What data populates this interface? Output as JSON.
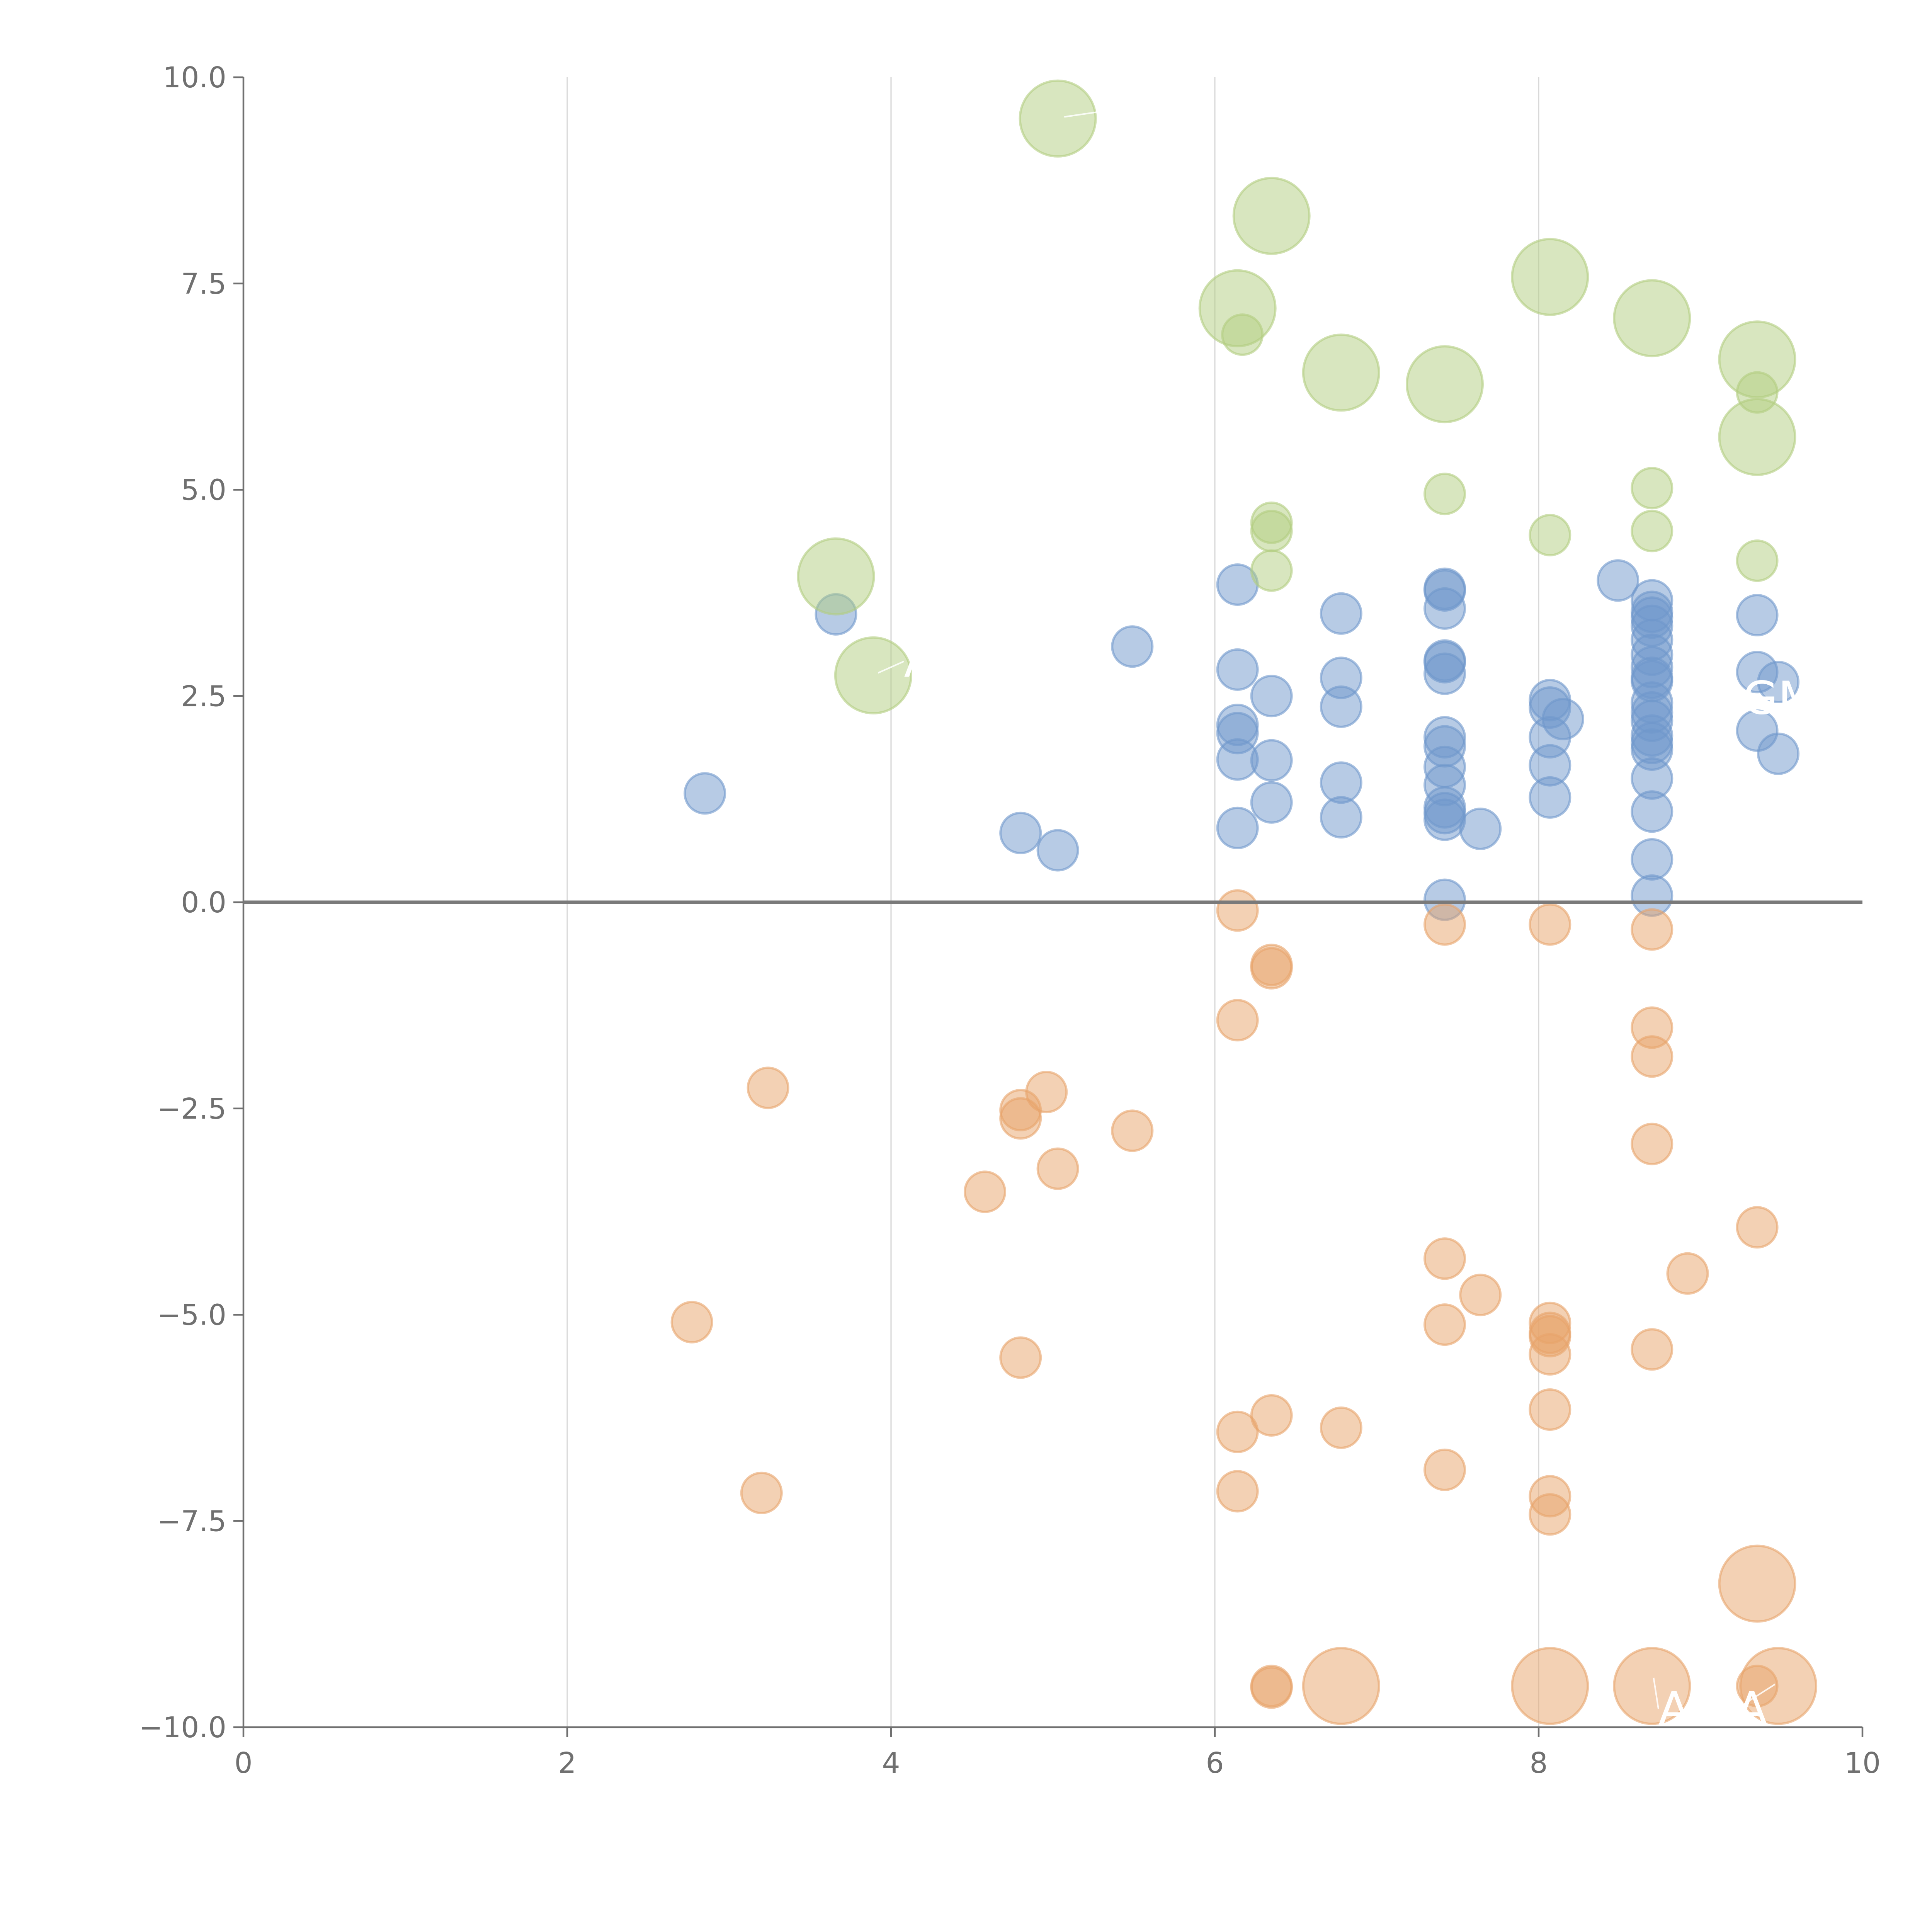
{
  "chart_data": {
    "type": "scatter",
    "title": "",
    "xlabel": "",
    "ylabel": "",
    "xlim": [
      0,
      10
    ],
    "ylim": [
      -10,
      10
    ],
    "x_ticks": [
      0,
      2,
      4,
      6,
      8,
      10
    ],
    "y_ticks": [
      -10,
      -7.5,
      -5,
      -2.5,
      0,
      2.5,
      5,
      7.5,
      10
    ],
    "x_tick_labels": [
      "0",
      "2",
      "4",
      "6",
      "8",
      "10"
    ],
    "y_tick_labels": [
      "−10.0",
      "−7.5",
      "−5.0",
      "−2.5",
      "0.0",
      "2.5",
      "5.0",
      "7.5",
      "10.0"
    ],
    "vertical_grid_at": [
      2,
      4,
      6,
      8
    ],
    "reference_line_y": 0,
    "series": [
      {
        "name": "blue",
        "color": "#7098cc",
        "points": [
          [
            2.85,
            1.32,
            1
          ],
          [
            3.66,
            3.49,
            1
          ],
          [
            4.8,
            0.84,
            1
          ],
          [
            5.03,
            0.63,
            1
          ],
          [
            5.49,
            3.1,
            1
          ],
          [
            6.14,
            3.85,
            1
          ],
          [
            6.14,
            2.82,
            1
          ],
          [
            6.14,
            2.15,
            1
          ],
          [
            6.14,
            2.05,
            1
          ],
          [
            6.14,
            1.73,
            1
          ],
          [
            6.14,
            0.9,
            1
          ],
          [
            6.35,
            2.5,
            1
          ],
          [
            6.35,
            1.72,
            1
          ],
          [
            6.35,
            1.21,
            1
          ],
          [
            6.78,
            3.5,
            1
          ],
          [
            6.78,
            2.72,
            1
          ],
          [
            6.78,
            2.37,
            1
          ],
          [
            6.78,
            1.45,
            1
          ],
          [
            6.78,
            1.03,
            1
          ],
          [
            7.42,
            3.8,
            1
          ],
          [
            7.42,
            3.78,
            1
          ],
          [
            7.42,
            3.56,
            1
          ],
          [
            7.42,
            2.93,
            1
          ],
          [
            7.42,
            2.91,
            1
          ],
          [
            7.42,
            2.77,
            1
          ],
          [
            7.42,
            2.0,
            1
          ],
          [
            7.42,
            1.89,
            1
          ],
          [
            7.42,
            1.64,
            1
          ],
          [
            7.42,
            1.42,
            1
          ],
          [
            7.42,
            1.15,
            1
          ],
          [
            7.42,
            1.08,
            1
          ],
          [
            7.42,
            1.0,
            1
          ],
          [
            7.42,
            0.03,
            1
          ],
          [
            7.64,
            0.89,
            1
          ],
          [
            8.07,
            2.45,
            1
          ],
          [
            8.07,
            2.36,
            1
          ],
          [
            8.07,
            2.0,
            1
          ],
          [
            8.07,
            1.66,
            1
          ],
          [
            8.07,
            1.27,
            1
          ],
          [
            8.15,
            2.22,
            1
          ],
          [
            8.49,
            3.9,
            1
          ],
          [
            8.7,
            3.66,
            1
          ],
          [
            8.7,
            3.52,
            1
          ],
          [
            8.7,
            3.45,
            1
          ],
          [
            8.7,
            3.35,
            1
          ],
          [
            8.7,
            3.18,
            1
          ],
          [
            8.7,
            3.0,
            1
          ],
          [
            8.7,
            2.85,
            1
          ],
          [
            8.7,
            2.72,
            1
          ],
          [
            8.7,
            2.68,
            1
          ],
          [
            8.7,
            2.42,
            1
          ],
          [
            8.7,
            2.3,
            1
          ],
          [
            8.7,
            2.2,
            1
          ],
          [
            8.7,
            2.02,
            1
          ],
          [
            8.7,
            1.93,
            1
          ],
          [
            8.7,
            1.85,
            1
          ],
          [
            8.7,
            1.5,
            1
          ],
          [
            8.7,
            1.1,
            1
          ],
          [
            8.7,
            0.52,
            1
          ],
          [
            8.7,
            0.08,
            1
          ],
          [
            9.35,
            3.48,
            1
          ],
          [
            9.35,
            2.79,
            1
          ],
          [
            9.35,
            2.08,
            1
          ],
          [
            9.48,
            2.67,
            1
          ],
          [
            9.48,
            1.8,
            1
          ]
        ]
      },
      {
        "name": "orange",
        "color": "#e8a36a",
        "points": [
          [
            2.77,
            -5.09,
            1
          ],
          [
            3.2,
            -7.16,
            1
          ],
          [
            3.24,
            -2.25,
            1
          ],
          [
            4.58,
            -3.51,
            1
          ],
          [
            4.8,
            -2.52,
            1
          ],
          [
            4.8,
            -2.62,
            1
          ],
          [
            4.8,
            -5.52,
            1
          ],
          [
            4.96,
            -2.3,
            1
          ],
          [
            5.03,
            -3.23,
            1
          ],
          [
            5.49,
            -2.77,
            1
          ],
          [
            6.14,
            -0.1,
            1
          ],
          [
            6.14,
            -1.43,
            1
          ],
          [
            6.14,
            -6.42,
            1
          ],
          [
            6.14,
            -7.14,
            1
          ],
          [
            6.35,
            -0.76,
            1
          ],
          [
            6.35,
            -0.8,
            1
          ],
          [
            6.35,
            -6.22,
            1
          ],
          [
            6.35,
            -9.5,
            1
          ],
          [
            6.35,
            -9.52,
            1
          ],
          [
            6.78,
            -6.37,
            1
          ],
          [
            6.78,
            -9.5,
            3
          ],
          [
            7.42,
            -0.27,
            1
          ],
          [
            7.42,
            -4.32,
            1
          ],
          [
            7.42,
            -5.12,
            1
          ],
          [
            7.42,
            -6.88,
            1
          ],
          [
            7.64,
            -4.76,
            1
          ],
          [
            8.07,
            -0.27,
            1
          ],
          [
            8.07,
            -5.1,
            1
          ],
          [
            8.07,
            -5.22,
            1
          ],
          [
            8.07,
            -5.26,
            1
          ],
          [
            8.07,
            -5.48,
            1
          ],
          [
            8.07,
            -6.15,
            1
          ],
          [
            8.07,
            -7.2,
            1
          ],
          [
            8.07,
            -7.42,
            1
          ],
          [
            8.07,
            -9.5,
            3
          ],
          [
            8.7,
            -0.33,
            1
          ],
          [
            8.7,
            -1.52,
            1
          ],
          [
            8.7,
            -1.87,
            1
          ],
          [
            8.7,
            -2.93,
            1
          ],
          [
            8.7,
            -5.42,
            1
          ],
          [
            8.7,
            -9.5,
            3
          ],
          [
            8.92,
            -4.5,
            1
          ],
          [
            9.35,
            -3.94,
            1
          ],
          [
            9.35,
            -8.26,
            3
          ],
          [
            9.35,
            -9.5,
            1
          ],
          [
            9.48,
            -9.5,
            3
          ]
        ]
      },
      {
        "name": "green",
        "color": "#b2cd80",
        "points": [
          [
            3.66,
            3.95,
            3
          ],
          [
            3.89,
            2.75,
            3
          ],
          [
            5.03,
            9.5,
            3
          ],
          [
            6.14,
            7.2,
            3
          ],
          [
            6.17,
            6.88,
            1
          ],
          [
            6.35,
            8.32,
            3
          ],
          [
            6.35,
            4.6,
            1
          ],
          [
            6.35,
            4.5,
            1
          ],
          [
            6.35,
            4.02,
            1
          ],
          [
            6.78,
            6.42,
            3
          ],
          [
            7.42,
            6.28,
            3
          ],
          [
            7.42,
            4.95,
            1
          ],
          [
            8.07,
            7.58,
            3
          ],
          [
            8.07,
            4.45,
            1
          ],
          [
            8.7,
            7.08,
            3
          ],
          [
            8.7,
            5.02,
            1
          ],
          [
            8.7,
            4.5,
            1
          ],
          [
            9.35,
            6.58,
            3
          ],
          [
            9.35,
            6.18,
            1
          ],
          [
            9.35,
            5.64,
            3
          ],
          [
            9.35,
            4.14,
            1
          ]
        ]
      }
    ],
    "annotations": [
      {
        "text": "I",
        "x": 5.28,
        "y": 9.58,
        "from_x": 5.07,
        "from_y": 9.52
      },
      {
        "text": "A",
        "x": 4.08,
        "y": 2.92,
        "from_x": 3.92,
        "from_y": 2.78
      },
      {
        "text": "GM",
        "x": 9.26,
        "y": 2.47,
        "from_x": null,
        "from_y": null
      },
      {
        "text": "A",
        "x": 8.74,
        "y": -9.78,
        "from_x": 8.71,
        "from_y": -9.4
      },
      {
        "text": "A",
        "x": 9.22,
        "y": -9.78,
        "from_x": 9.46,
        "from_y": -9.48
      }
    ]
  }
}
